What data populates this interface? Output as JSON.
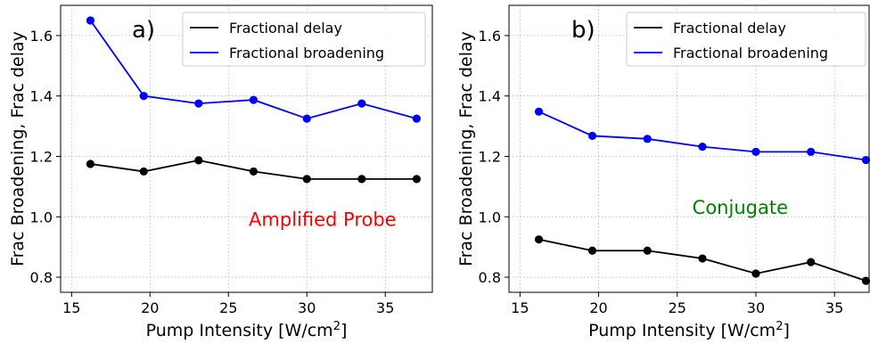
{
  "chart_data": [
    {
      "type": "line",
      "panel_label": "a)",
      "annotation": {
        "text": "Amplified Probe",
        "color": "#ff0000",
        "x": 31,
        "y": 0.97
      },
      "xlabel_main": "Pump Intensity [W/cm",
      "xlabel_sup": "2",
      "xlabel_end": "]",
      "ylabel": "Frac Broadening, Frac delay",
      "xlim": [
        14.3,
        38.0
      ],
      "ylim": [
        0.75,
        1.7
      ],
      "xticks": [
        15,
        20,
        25,
        30,
        35
      ],
      "yticks": [
        0.8,
        1.0,
        1.2,
        1.4,
        1.6
      ],
      "grid": true,
      "legend_position": "top-right",
      "series": [
        {
          "name": "Fractional delay",
          "color": "#000000",
          "x": [
            16.2,
            19.6,
            23.1,
            26.6,
            30.0,
            33.5,
            37.0
          ],
          "y": [
            1.175,
            1.15,
            1.187,
            1.15,
            1.125,
            1.125,
            1.125
          ]
        },
        {
          "name": "Fractional broadening",
          "color": "#0000ff",
          "x": [
            16.2,
            19.6,
            23.1,
            26.6,
            30.0,
            33.5,
            37.0
          ],
          "y": [
            1.65,
            1.4,
            1.375,
            1.387,
            1.325,
            1.375,
            1.325
          ]
        }
      ]
    },
    {
      "type": "line",
      "panel_label": "b)",
      "annotation": {
        "text": "Conjugate",
        "color": "#008000",
        "x": 29,
        "y": 1.01
      },
      "xlabel_main": "Pump Intensity [W/cm",
      "xlabel_sup": "2",
      "xlabel_end": "]",
      "ylabel": "Frac Broadening, Frac delay",
      "xlim": [
        14.3,
        37.2
      ],
      "ylim": [
        0.75,
        1.7
      ],
      "xticks": [
        15,
        20,
        25,
        30,
        35
      ],
      "yticks": [
        0.8,
        1.0,
        1.2,
        1.4,
        1.6
      ],
      "grid": true,
      "legend_position": "top-right",
      "series": [
        {
          "name": "Fractional delay",
          "color": "#000000",
          "x": [
            16.2,
            19.6,
            23.1,
            26.6,
            30.0,
            33.5,
            37.0
          ],
          "y": [
            0.925,
            0.888,
            0.888,
            0.862,
            0.812,
            0.85,
            0.788
          ]
        },
        {
          "name": "Fractional broadening",
          "color": "#0000ff",
          "x": [
            16.2,
            19.6,
            23.1,
            26.6,
            30.0,
            33.5,
            37.0
          ],
          "y": [
            1.348,
            1.268,
            1.258,
            1.232,
            1.215,
            1.215,
            1.188
          ]
        }
      ]
    }
  ]
}
